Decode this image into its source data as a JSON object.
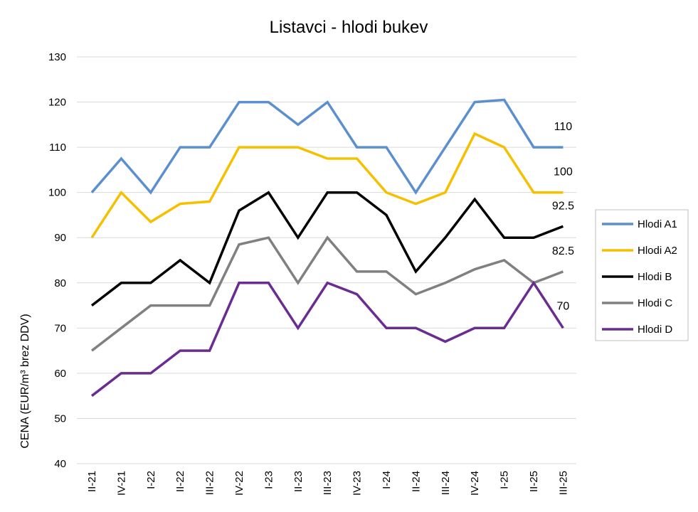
{
  "chart_data": {
    "type": "line",
    "title": "Listavci - hlodi bukev",
    "xlabel": "",
    "ylabel": "CENA (EUR/m³ brez DDV)",
    "ylim": [
      40,
      130
    ],
    "yticks": [
      40,
      50,
      60,
      70,
      80,
      90,
      100,
      110,
      120,
      130
    ],
    "grid": true,
    "legend_position": "right",
    "categories": [
      "II-21",
      "IV-21",
      "I-22",
      "II-22",
      "III-22",
      "IV-22",
      "I-23",
      "II-23",
      "III-23",
      "IV-23",
      "I-24",
      "II-24",
      "III-24",
      "IV-24",
      "I-25",
      "II-25",
      "III-25"
    ],
    "series": [
      {
        "name": "Hlodi A1",
        "color": "#5b8fd0",
        "values": [
          100,
          107.5,
          100,
          110,
          110,
          120,
          120,
          115,
          120,
          110,
          110,
          100,
          110,
          120,
          120.5,
          110,
          110
        ],
        "end_label": "110"
      },
      {
        "name": "Hlodi A2",
        "color": "#f5c000",
        "values": [
          90,
          100,
          93.5,
          97.5,
          98,
          110,
          110,
          110,
          107.5,
          107.5,
          100,
          97.5,
          100,
          113,
          110,
          100,
          100
        ],
        "end_label": "100"
      },
      {
        "name": "Hlodi B",
        "color": "#000000",
        "values": [
          75,
          80,
          80,
          85,
          80,
          96,
          100,
          90,
          100,
          100,
          95,
          82.5,
          90,
          98.5,
          90,
          90,
          92.5
        ],
        "end_label": "92.5"
      },
      {
        "name": "Hlodi C",
        "color": "#808080",
        "values": [
          65,
          70,
          75,
          75,
          75,
          88.5,
          90,
          80,
          90,
          82.5,
          82.5,
          77.5,
          80,
          83,
          85,
          80,
          82.5
        ],
        "end_label": "82.5"
      },
      {
        "name": "Hlodi D",
        "color": "#6a2c91",
        "values": [
          55,
          60,
          60,
          65,
          65,
          80,
          80,
          70,
          80,
          77.5,
          70,
          70,
          67,
          70,
          70,
          80,
          70
        ],
        "end_label": "70"
      }
    ]
  }
}
